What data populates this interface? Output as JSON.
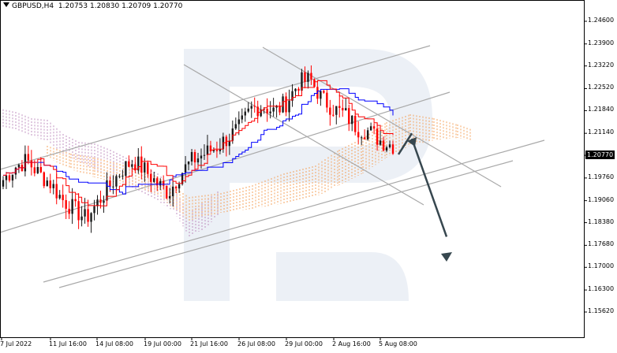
{
  "header": {
    "symbol": "GBPUSD,H4",
    "ohlc": "1.20753 1.20830 1.20709 1.20770"
  },
  "price_axis": {
    "ticks": [
      "1.24600",
      "1.23900",
      "1.23220",
      "1.22520",
      "1.21840",
      "1.21140",
      "1.20460",
      "1.19760",
      "1.19060",
      "1.18380",
      "1.17680",
      "1.17000",
      "1.16300",
      "1.15620"
    ],
    "current_price": "1.20770"
  },
  "time_axis": {
    "ticks": [
      "7 Jul 2022",
      "11 Jul 16:00",
      "14 Jul 08:00",
      "19 Jul 00:00",
      "21 Jul 16:00",
      "26 Jul 08:00",
      "29 Jul 00:00",
      "2 Aug 16:00",
      "5 Aug 08:00"
    ]
  },
  "colors": {
    "bull_candle": "#1a1a1a",
    "bear_candle": "#ff0000",
    "kijun": "#0000ff",
    "tenkan": "#ff0000",
    "cloud_bull": "#f4a460",
    "cloud_bear": "#c090c0",
    "trendline": "#a9a9a9",
    "forecast_arrow": "#37474f",
    "watermark": "#dde3ee"
  },
  "chart_data": {
    "type": "candlestick",
    "indicator": "Ichimoku Kinko Hyo",
    "ylim": [
      1.1562,
      1.2495
    ],
    "forecast": {
      "up_target": 1.2114,
      "down_target": 1.1775
    },
    "close_path": [
      1.197,
      1.201,
      1.203,
      1.199,
      1.196,
      1.191,
      1.188,
      1.185,
      1.19,
      1.195,
      1.2,
      1.203,
      1.2,
      1.196,
      1.193,
      1.199,
      1.203,
      1.205,
      1.207,
      1.21,
      1.213,
      1.219,
      1.22,
      1.218,
      1.221,
      1.227,
      1.228,
      1.222,
      1.219,
      1.217,
      1.213,
      1.212,
      1.209,
      1.2077
    ]
  }
}
